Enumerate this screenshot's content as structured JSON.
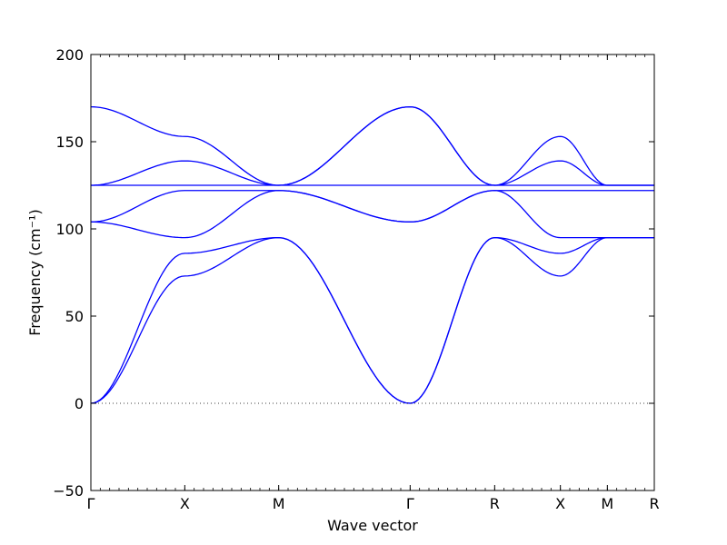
{
  "chart_data": {
    "type": "line",
    "xlabel": "Wave vector",
    "ylabel": "Frequency (cm⁻¹)",
    "ylim": [
      -50,
      200
    ],
    "yticks": [
      -50,
      0,
      50,
      100,
      150,
      200
    ],
    "x_ticks": [
      "Γ",
      "X",
      "M",
      "Γ",
      "R",
      "X",
      "M",
      "R"
    ],
    "grid": false,
    "zero_line": "dotted",
    "x": [
      0,
      1,
      2,
      3.4,
      4.3,
      5.0,
      5.5,
      6.0
    ],
    "series": [
      {
        "values": [
          0,
          73,
          95,
          0,
          95,
          73,
          95,
          95
        ]
      },
      {
        "values": [
          0,
          86,
          95,
          0,
          95,
          86,
          95,
          95
        ]
      },
      {
        "values": [
          104,
          95,
          122,
          104,
          122,
          95,
          95,
          95
        ]
      },
      {
        "values": [
          104,
          122,
          122,
          104,
          122,
          122,
          122,
          122
        ]
      },
      {
        "values": [
          125,
          125,
          125,
          125,
          125,
          125,
          125,
          125
        ]
      },
      {
        "values": [
          125,
          139,
          125,
          170,
          125,
          139,
          125,
          125
        ]
      },
      {
        "values": [
          170,
          153,
          125,
          170,
          125,
          153,
          125,
          125
        ]
      }
    ]
  }
}
